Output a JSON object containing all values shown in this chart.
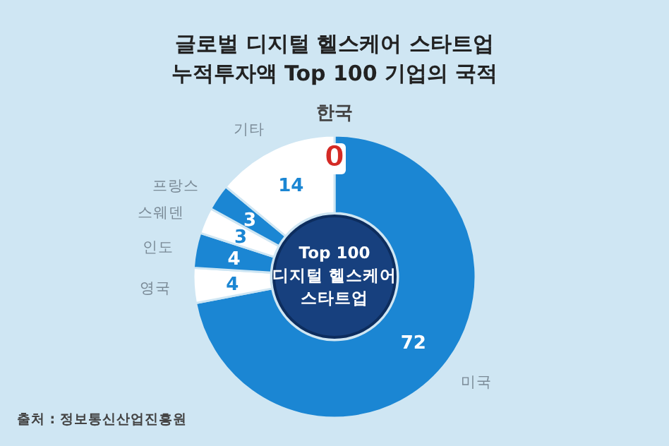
{
  "chart_data": {
    "type": "donut",
    "title": "글로벌 디지털 헬스케어 스타트업\n누적투자액 Top 100 기업의 국적",
    "categories": [
      "한국",
      "미국",
      "영국",
      "인도",
      "스웨덴",
      "프랑스",
      "기타"
    ],
    "values": [
      0,
      72,
      4,
      4,
      3,
      3,
      14
    ],
    "colors": [
      "#d42a25",
      "#1b86d3",
      "#ffffff",
      "#1b86d3",
      "#ffffff",
      "#1b86d3",
      "#ffffff"
    ],
    "value_labels": [
      "0",
      "72",
      "4",
      "4",
      "3",
      "3",
      "14"
    ],
    "annotations": [
      "Top 100\n디지털 헬스케어\n스타트업",
      "출처 : 정보통신산업진흥원"
    ]
  }
}
